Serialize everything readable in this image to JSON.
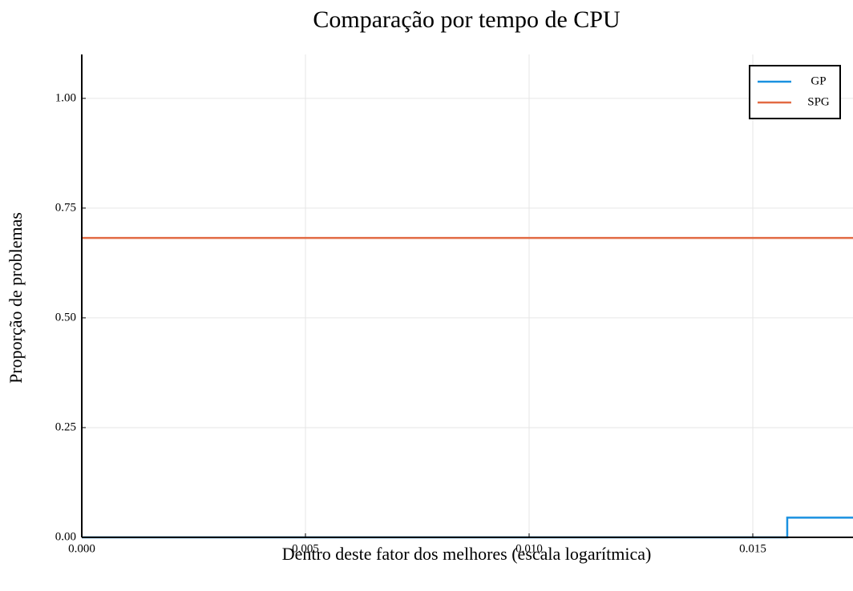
{
  "chart_data": {
    "type": "line",
    "title": "Comparação por tempo de CPU",
    "xlabel": "Dentro deste fator dos melhores (escala logarítmica)",
    "ylabel": "Proporção de problemas",
    "xlim": [
      0,
      0.01724
    ],
    "ylim": [
      0,
      1.1
    ],
    "xticks": [
      {
        "value": 0,
        "label": "0.000"
      },
      {
        "value": 0.005,
        "label": "0.005"
      },
      {
        "value": 0.01,
        "label": "0.010"
      },
      {
        "value": 0.015,
        "label": "0.015"
      }
    ],
    "yticks": [
      {
        "value": 0,
        "label": "0.00"
      },
      {
        "value": 0.25,
        "label": "0.25"
      },
      {
        "value": 0.5,
        "label": "0.50"
      },
      {
        "value": 0.75,
        "label": "0.75"
      },
      {
        "value": 1,
        "label": "1.00"
      }
    ],
    "grid": true,
    "legend": "top-right",
    "series": [
      {
        "name": "GP",
        "color": "#1a91e0",
        "x": [
          0,
          0.01577,
          0.01577,
          0.01724
        ],
        "values": [
          0,
          0,
          0.045,
          0.045
        ]
      },
      {
        "name": "SPG",
        "color": "#e26a43",
        "x": [
          0,
          0.01724
        ],
        "values": [
          0.682,
          0.682
        ]
      }
    ]
  }
}
